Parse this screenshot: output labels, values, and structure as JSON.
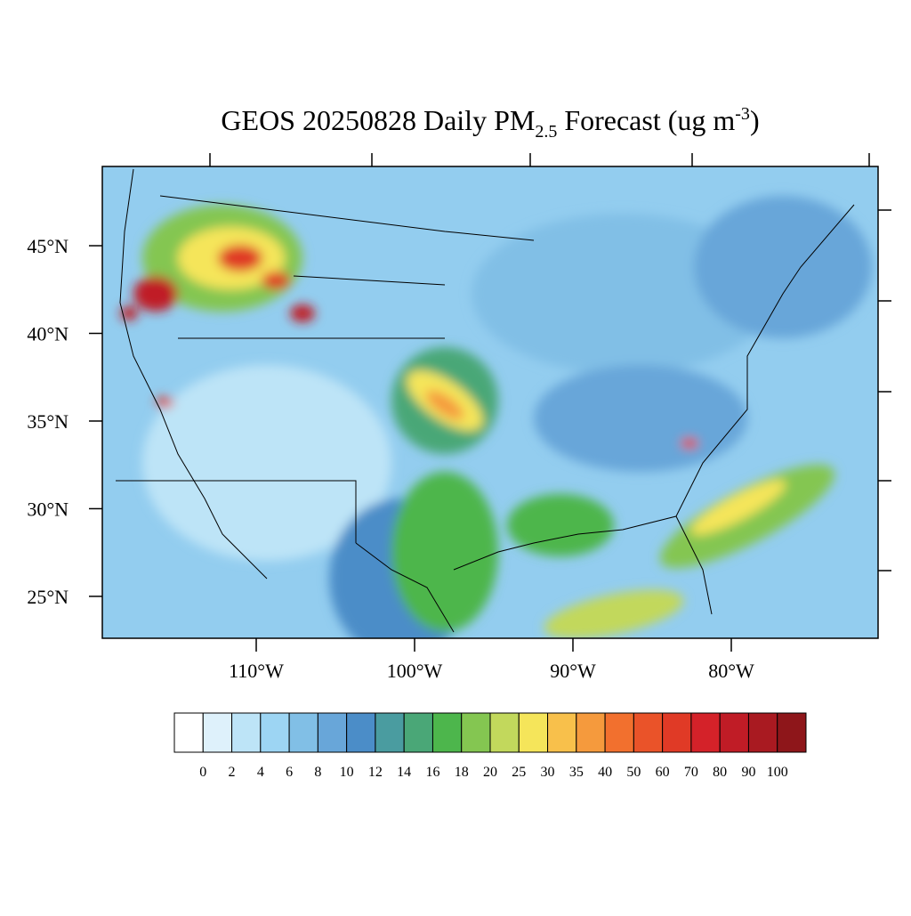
{
  "chart_data": {
    "type": "map",
    "title": {
      "main": "GEOS 20250828 Daily PM",
      "sub": "2.5",
      "rest": " Forecast (ug m",
      "sup": "-3",
      "close": ")"
    },
    "xlim": [
      -119.72,
      -70.73
    ],
    "ylim": [
      22.61,
      49.52
    ],
    "xticks": [
      {
        "value": -110,
        "label": "110°W"
      },
      {
        "value": -100,
        "label": "100°W"
      },
      {
        "value": -90,
        "label": "90°W"
      },
      {
        "value": -80,
        "label": "80°W"
      }
    ],
    "yticks": [
      {
        "value": 25,
        "label": "25°N"
      },
      {
        "value": 30,
        "label": "30°N"
      },
      {
        "value": 35,
        "label": "35°N"
      },
      {
        "value": 40,
        "label": "40°N"
      },
      {
        "value": 45,
        "label": "45°N"
      }
    ],
    "colorbar": {
      "levels": [
        0,
        2,
        4,
        6,
        8,
        10,
        12,
        14,
        16,
        18,
        20,
        25,
        30,
        35,
        40,
        50,
        60,
        70,
        80,
        90,
        100
      ],
      "colors": [
        "#ffffff",
        "#def1fb",
        "#bde4f7",
        "#9dd5f3",
        "#81bfe6",
        "#68a6d9",
        "#4b8dc8",
        "#4a9ca0",
        "#4aa777",
        "#4db64c",
        "#84c651",
        "#c2d85c",
        "#f5e55a",
        "#f8c04b",
        "#f59a3d",
        "#f2702e",
        "#ea5329",
        "#e03a26",
        "#d42229",
        "#c01c26",
        "#a91a21",
        "#8e161a"
      ]
    }
  }
}
